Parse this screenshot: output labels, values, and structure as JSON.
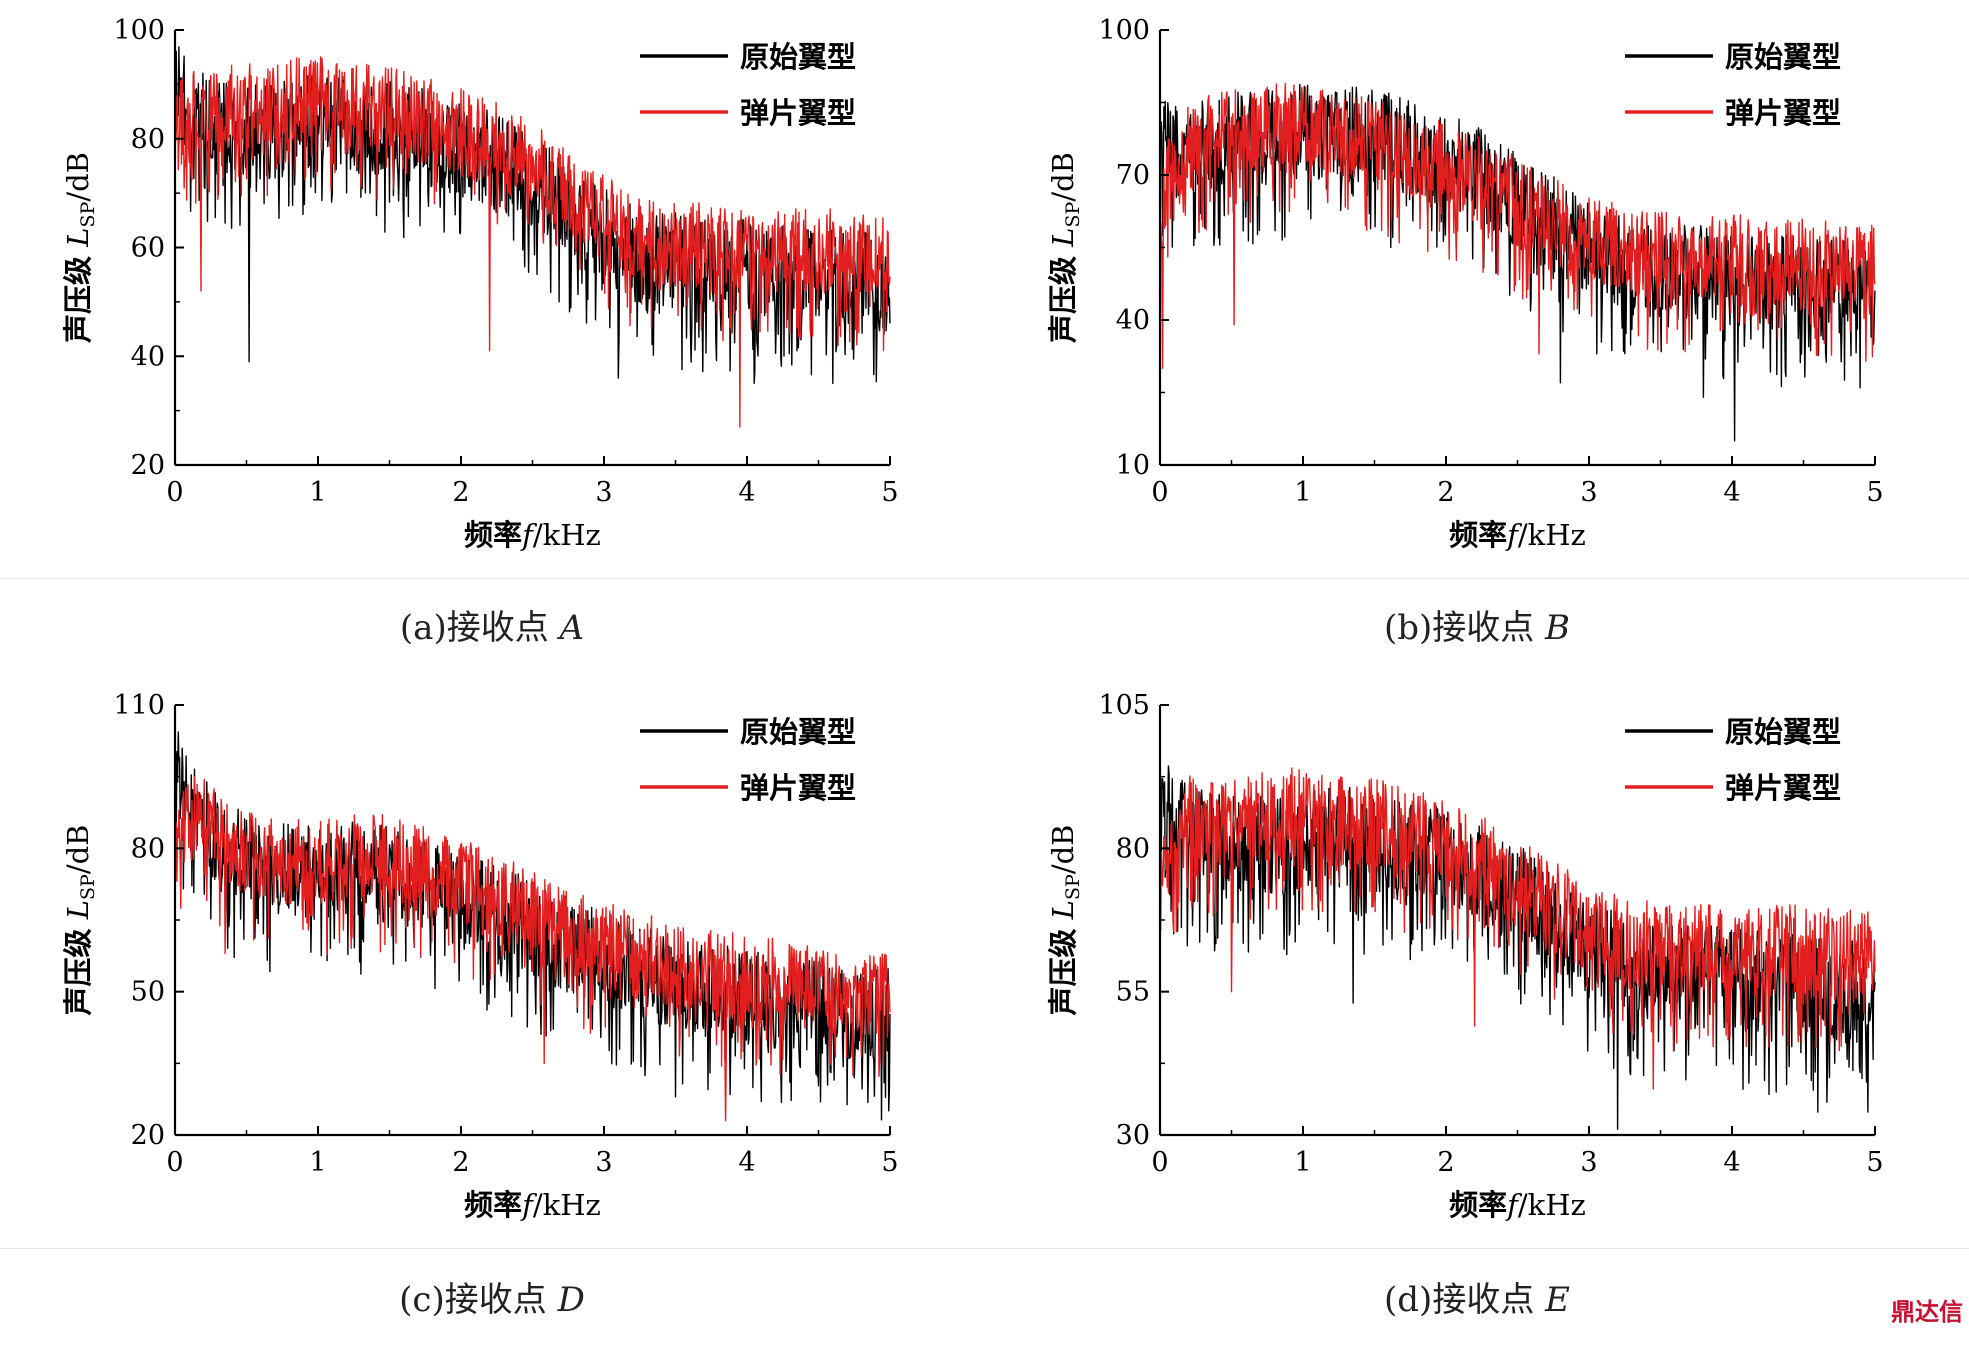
{
  "watermark": "鼎达信",
  "chart_data": [
    {
      "type": "line",
      "panel_label": "(a)接收点",
      "panel_point": "A",
      "xlabel_prefix": "频率",
      "xlabel_var": "f",
      "xlabel_unit": "/kHz",
      "ylabel_prefix": "声压级",
      "ylabel_var": "L",
      "ylabel_sub": "SP",
      "ylabel_unit": "/dB",
      "xlim": [
        0,
        5
      ],
      "ylim": [
        20,
        100
      ],
      "xticks": [
        0,
        1,
        2,
        3,
        4,
        5
      ],
      "yticks": [
        20,
        40,
        60,
        80,
        100
      ],
      "legend_position": "top-right",
      "series": [
        {
          "name": "原始翼型",
          "color": "#000000",
          "envelope_x": [
            0,
            0.05,
            0.1,
            0.2,
            0.3,
            0.5,
            0.8,
            1.0,
            1.2,
            1.5,
            1.8,
            2.0,
            2.3,
            2.6,
            2.8,
            3.0,
            3.3,
            3.6,
            4.0,
            4.4,
            4.8,
            5.0
          ],
          "envelope_mean": [
            90,
            88,
            86,
            84,
            83,
            82,
            83,
            84,
            84,
            83,
            81,
            79,
            76,
            71,
            67,
            63,
            59,
            58,
            57,
            56,
            55,
            53
          ],
          "spread": 9,
          "min_dips": [
            [
              0.52,
              39
            ],
            [
              3.1,
              36
            ],
            [
              4.05,
              35
            ],
            [
              4.6,
              35
            ]
          ]
        },
        {
          "name": "弹片翼型",
          "color": "#e31e1e",
          "envelope_x": [
            0,
            0.05,
            0.1,
            0.2,
            0.3,
            0.5,
            0.8,
            1.0,
            1.2,
            1.5,
            1.8,
            2.0,
            2.3,
            2.6,
            2.8,
            3.0,
            3.3,
            3.6,
            4.0,
            4.4,
            4.8,
            5.0
          ],
          "envelope_mean": [
            82,
            84,
            85,
            86,
            86,
            87,
            88,
            88,
            87,
            86,
            84,
            82,
            79,
            74,
            70,
            66,
            62,
            61,
            61,
            60,
            60,
            59
          ],
          "spread": 8,
          "min_dips": [
            [
              0.18,
              52
            ],
            [
              2.2,
              41
            ],
            [
              3.95,
              27
            ]
          ]
        }
      ]
    },
    {
      "type": "line",
      "panel_label": "(b)接收点",
      "panel_point": "B",
      "xlabel_prefix": "频率",
      "xlabel_var": "f",
      "xlabel_unit": "/kHz",
      "ylabel_prefix": "声压级",
      "ylabel_var": "L",
      "ylabel_sub": "SP",
      "ylabel_unit": "/dB",
      "xlim": [
        0,
        5
      ],
      "ylim": [
        10,
        100
      ],
      "xticks": [
        0,
        1,
        2,
        3,
        4,
        5
      ],
      "yticks": [
        10,
        40,
        70,
        100
      ],
      "legend_position": "top-right",
      "series": [
        {
          "name": "原始翼型",
          "color": "#000000",
          "envelope_x": [
            0,
            0.05,
            0.1,
            0.2,
            0.3,
            0.5,
            0.8,
            1.0,
            1.2,
            1.5,
            1.8,
            2.0,
            2.3,
            2.6,
            2.8,
            3.0,
            3.3,
            3.6,
            4.0,
            4.4,
            4.8,
            5.0
          ],
          "envelope_mean": [
            80,
            78,
            76,
            76,
            77,
            78,
            79,
            80,
            80,
            79,
            76,
            74,
            70,
            64,
            60,
            56,
            52,
            51,
            50,
            49,
            48,
            47
          ],
          "spread": 10,
          "min_dips": [
            [
              2.8,
              27
            ],
            [
              3.8,
              24
            ],
            [
              4.02,
              15
            ]
          ]
        },
        {
          "name": "弹片翼型",
          "color": "#e31e1e",
          "envelope_x": [
            0,
            0.05,
            0.1,
            0.2,
            0.3,
            0.5,
            0.8,
            1.0,
            1.2,
            1.5,
            1.8,
            2.0,
            2.3,
            2.6,
            2.8,
            3.0,
            3.3,
            3.6,
            4.0,
            4.4,
            4.8,
            5.0
          ],
          "envelope_mean": [
            62,
            70,
            74,
            76,
            78,
            80,
            81,
            81,
            80,
            78,
            75,
            73,
            69,
            64,
            61,
            58,
            55,
            54,
            54,
            53,
            52,
            52
          ],
          "spread": 9,
          "min_dips": [
            [
              0.02,
              30
            ],
            [
              0.52,
              39
            ],
            [
              2.65,
              33
            ]
          ]
        }
      ]
    },
    {
      "type": "line",
      "panel_label": "(c)接收点",
      "panel_point": "D",
      "xlabel_prefix": "频率",
      "xlabel_var": "f",
      "xlabel_unit": "/kHz",
      "ylabel_prefix": "声压级",
      "ylabel_var": "L",
      "ylabel_sub": "SP",
      "ylabel_unit": "/dB",
      "xlim": [
        0,
        5
      ],
      "ylim": [
        20,
        110
      ],
      "xticks": [
        0,
        1,
        2,
        3,
        4,
        5
      ],
      "yticks": [
        20,
        50,
        80,
        110
      ],
      "legend_position": "top-right",
      "series": [
        {
          "name": "原始翼型",
          "color": "#000000",
          "envelope_x": [
            0,
            0.05,
            0.1,
            0.2,
            0.3,
            0.5,
            0.8,
            1.0,
            1.2,
            1.5,
            1.8,
            2.0,
            2.3,
            2.6,
            2.8,
            3.0,
            3.3,
            3.6,
            4.0,
            4.4,
            4.8,
            5.0
          ],
          "envelope_mean": [
            100,
            94,
            90,
            86,
            82,
            78,
            76,
            76,
            77,
            76,
            73,
            71,
            67,
            63,
            60,
            58,
            55,
            52,
            50,
            48,
            46,
            46
          ],
          "spread": 10,
          "min_dips": [
            [
              3.5,
              28
            ],
            [
              4.1,
              27
            ],
            [
              4.75,
              32
            ]
          ]
        },
        {
          "name": "弹片翼型",
          "color": "#e31e1e",
          "envelope_x": [
            0,
            0.05,
            0.1,
            0.2,
            0.3,
            0.5,
            0.8,
            1.0,
            1.2,
            1.5,
            1.8,
            2.0,
            2.3,
            2.6,
            2.8,
            3.0,
            3.3,
            3.6,
            4.0,
            4.4,
            4.8,
            5.0
          ],
          "envelope_mean": [
            78,
            84,
            86,
            90,
            84,
            80,
            78,
            78,
            79,
            79,
            76,
            74,
            70,
            66,
            63,
            61,
            58,
            56,
            54,
            52,
            50,
            50
          ],
          "spread": 9,
          "min_dips": [
            [
              0.35,
              58
            ],
            [
              2.58,
              35
            ],
            [
              3.85,
              23
            ]
          ]
        }
      ]
    },
    {
      "type": "line",
      "panel_label": "(d)接收点",
      "panel_point": "E",
      "xlabel_prefix": "频率",
      "xlabel_var": "f",
      "xlabel_unit": "/kHz",
      "ylabel_prefix": "声压级",
      "ylabel_var": "L",
      "ylabel_sub": "SP",
      "ylabel_unit": "/dB",
      "xlim": [
        0,
        5
      ],
      "ylim": [
        30,
        105
      ],
      "xticks": [
        0,
        1,
        2,
        3,
        4,
        5
      ],
      "yticks": [
        30,
        55,
        80,
        105
      ],
      "legend_position": "top-right",
      "series": [
        {
          "name": "原始翼型",
          "color": "#000000",
          "envelope_x": [
            0,
            0.05,
            0.1,
            0.2,
            0.3,
            0.5,
            0.8,
            1.0,
            1.2,
            1.5,
            1.8,
            2.0,
            2.3,
            2.6,
            2.8,
            3.0,
            3.3,
            3.6,
            4.0,
            4.4,
            4.8,
            5.0
          ],
          "envelope_mean": [
            88,
            87,
            85,
            83,
            82,
            81,
            81,
            82,
            83,
            82,
            80,
            79,
            76,
            71,
            67,
            63,
            60,
            59,
            58,
            57,
            56,
            55
          ],
          "spread": 9,
          "min_dips": [
            [
              1.35,
              53
            ],
            [
              3.2,
              31
            ],
            [
              4.6,
              34
            ],
            [
              4.95,
              34
            ]
          ]
        },
        {
          "name": "弹片翼型",
          "color": "#e31e1e",
          "envelope_x": [
            0,
            0.05,
            0.1,
            0.2,
            0.3,
            0.5,
            0.8,
            1.0,
            1.2,
            1.5,
            1.8,
            2.0,
            2.3,
            2.6,
            2.8,
            3.0,
            3.3,
            3.6,
            4.0,
            4.4,
            4.8,
            5.0
          ],
          "envelope_mean": [
            78,
            80,
            82,
            86,
            84,
            85,
            87,
            87,
            86,
            85,
            83,
            81,
            78,
            73,
            70,
            67,
            64,
            63,
            63,
            63,
            62,
            62
          ],
          "spread": 8,
          "min_dips": [
            [
              0.5,
              55
            ],
            [
              2.2,
              49
            ],
            [
              3.45,
              38
            ]
          ]
        }
      ]
    }
  ]
}
